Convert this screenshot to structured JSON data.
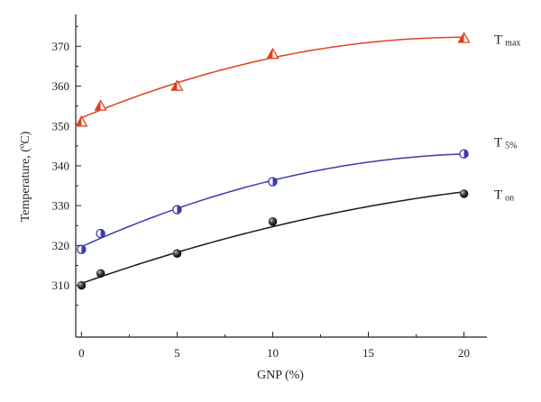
{
  "chart_data": {
    "type": "scatter",
    "title": "",
    "xlabel": "GNP (%)",
    "ylabel": "Temperature, (ºC)",
    "xlim": [
      -0.3,
      21.2
    ],
    "ylim": [
      297,
      378
    ],
    "xticks": [
      0,
      5,
      10,
      15,
      20
    ],
    "yticks": [
      310,
      320,
      330,
      340,
      350,
      360,
      370
    ],
    "grid": false,
    "legend": "none",
    "series": [
      {
        "label_main": "T",
        "label_sub": "max",
        "marker": "triangle",
        "color": "#e0401f",
        "x": [
          0,
          1,
          5,
          10,
          20
        ],
        "y": [
          351,
          355,
          360,
          368,
          372
        ],
        "fit_y": [
          352,
          354,
          361,
          367,
          372.3
        ]
      },
      {
        "label_main": "T",
        "label_sub": "5%",
        "marker": "half-circle",
        "color": "#3e3cac",
        "x": [
          0,
          1,
          5,
          10,
          20
        ],
        "y": [
          319,
          323,
          329,
          336,
          343
        ],
        "fit_y": [
          319.5,
          321.9,
          329.6,
          336.1,
          343
        ]
      },
      {
        "label_main": "T",
        "label_sub": "on",
        "marker": "sphere",
        "color": "#1a1a1a",
        "x": [
          0,
          1,
          5,
          10,
          20
        ],
        "y": [
          310,
          313,
          318,
          326,
          333
        ],
        "fit_y": [
          310.3,
          312.3,
          318.4,
          324.6,
          333.5
        ]
      }
    ]
  }
}
